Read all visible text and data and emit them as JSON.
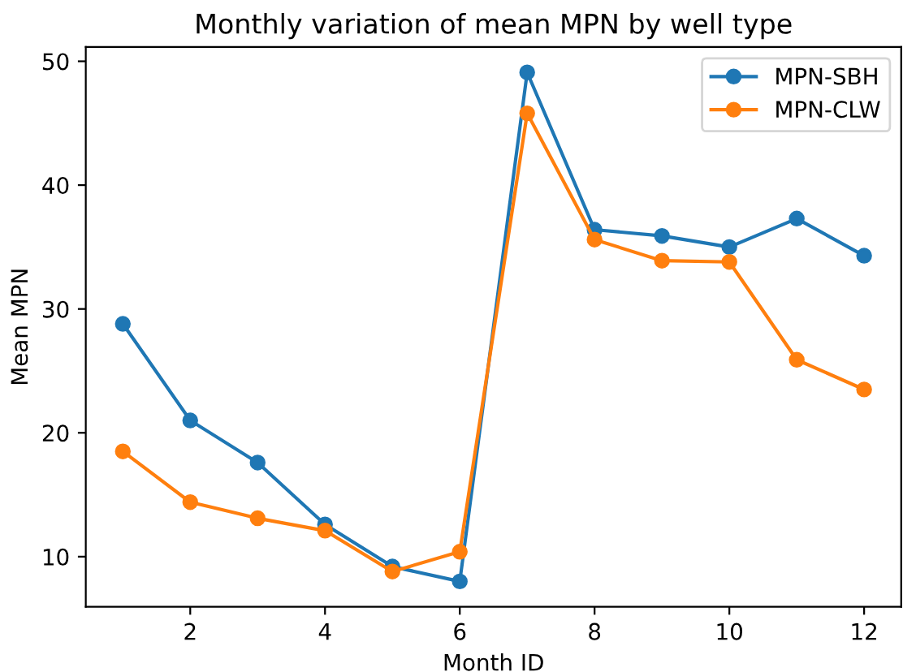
{
  "chart_data": {
    "type": "line",
    "title": "Monthly variation of mean MPN by well type",
    "xlabel": "Month ID",
    "ylabel": "Mean MPN",
    "x": [
      1,
      2,
      3,
      4,
      5,
      6,
      7,
      8,
      9,
      10,
      11,
      12
    ],
    "series": [
      {
        "name": "MPN-SBH",
        "color": "#1f77b4",
        "values": [
          28.8,
          21.0,
          17.6,
          12.6,
          9.2,
          8.0,
          49.1,
          36.4,
          35.9,
          35.0,
          37.3,
          34.3
        ]
      },
      {
        "name": "MPN-CLW",
        "color": "#ff7f0e",
        "values": [
          18.5,
          14.4,
          13.1,
          12.1,
          8.8,
          10.4,
          45.8,
          35.6,
          33.9,
          33.8,
          25.9,
          23.5
        ]
      }
    ],
    "xlim": [
      0.45,
      12.55
    ],
    "ylim": [
      5.95,
      51.15
    ],
    "xticks": [
      2,
      4,
      6,
      8,
      10,
      12
    ],
    "yticks": [
      10,
      20,
      30,
      40,
      50
    ],
    "marker": "circle",
    "line_style": "solid",
    "grid": false,
    "legend": "top right"
  }
}
